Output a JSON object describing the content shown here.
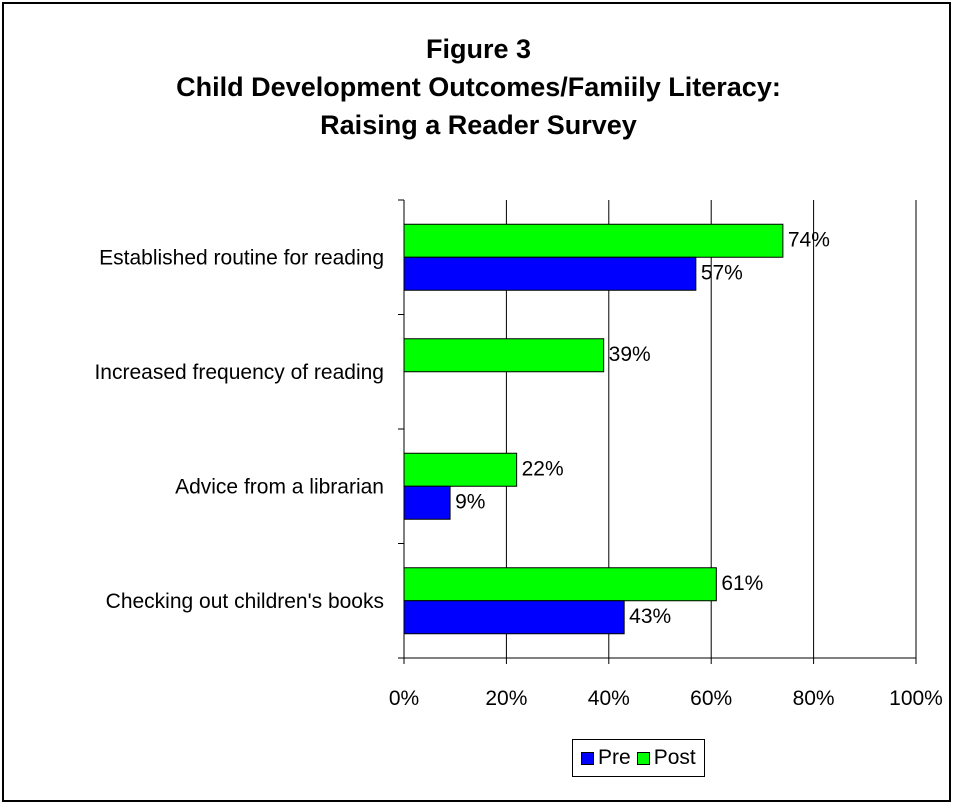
{
  "chart_data": {
    "type": "bar",
    "orientation": "horizontal",
    "title": [
      "Figure 3",
      "Child Development Outcomes/Famiily Literacy:",
      "Raising a Reader Survey"
    ],
    "categories": [
      "Established routine for reading",
      "Increased frequency of reading",
      "Advice from a librarian",
      "Checking out children's books"
    ],
    "series": [
      {
        "name": "Post",
        "values": [
          74,
          39,
          22,
          61
        ],
        "labels": [
          "74%",
          "39%",
          "22%",
          "61%"
        ],
        "color": "#00ff00"
      },
      {
        "name": "Pre",
        "values": [
          57,
          null,
          9,
          43
        ],
        "labels": [
          "57%",
          "",
          "9%",
          "43%"
        ],
        "color": "#0000ff"
      }
    ],
    "xlim": [
      0,
      100
    ],
    "xticks": [
      0,
      20,
      40,
      60,
      80,
      100
    ],
    "xtick_labels": [
      "0%",
      "20%",
      "40%",
      "60%",
      "80%",
      "100%"
    ],
    "grid": "vertical",
    "legend": {
      "placement": "bottom",
      "order": [
        "Pre",
        "Post"
      ]
    }
  }
}
